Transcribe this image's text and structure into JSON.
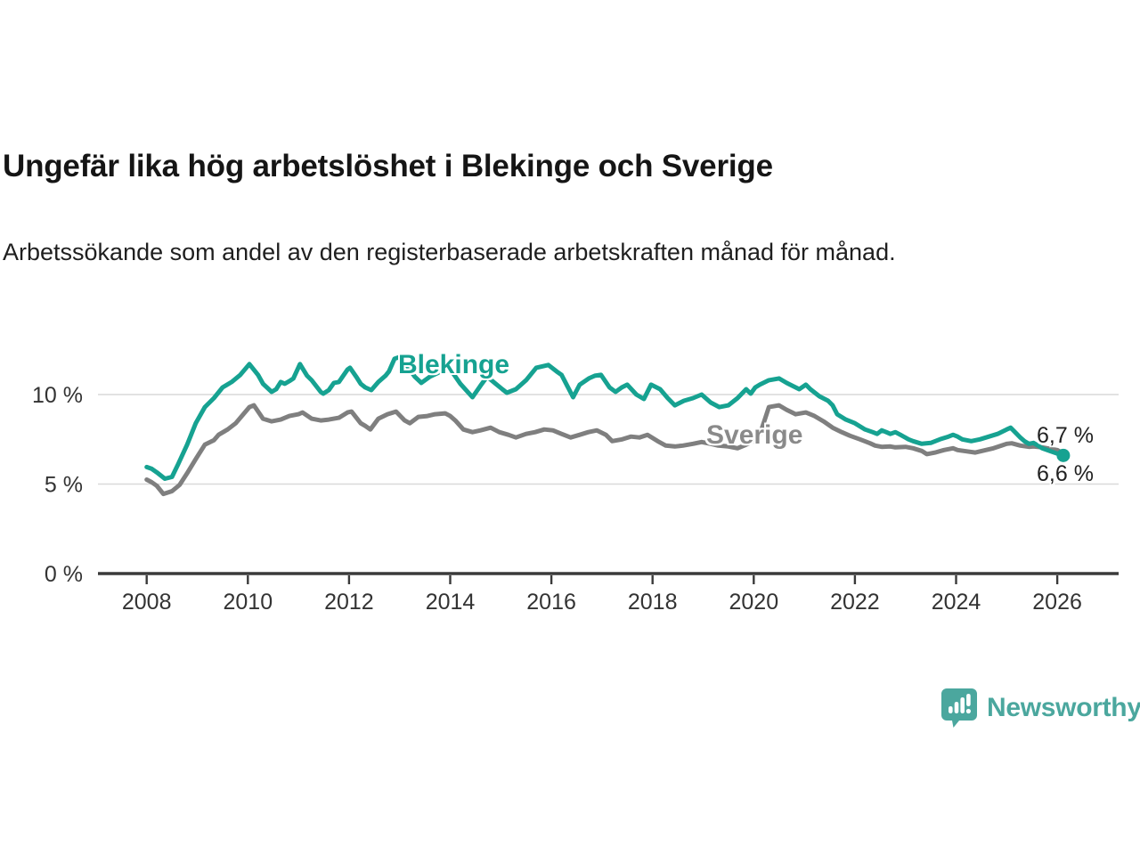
{
  "header": {
    "title": "Ungefär lika hög arbetslöshet i Blekinge och Sverige",
    "subtitle": "Arbetssökande som andel av den registerbaserade arbetskraften månad för månad."
  },
  "chart_data": {
    "type": "line",
    "title": "Ungefär lika hög arbetslöshet i Blekinge och Sverige",
    "subtitle": "Arbetssökande som andel av den registerbaserade arbetskraften månad för månad.",
    "unit": "%",
    "grid": "horizontal",
    "legend_position": "inline-labels",
    "x_axis": {
      "ticks": [
        2008,
        2010,
        2012,
        2014,
        2016,
        2018,
        2020,
        2022,
        2024,
        2026
      ],
      "range": [
        2007.0,
        2027.2
      ]
    },
    "y_axis": {
      "ticks": [
        {
          "value": 0,
          "label": "0 %"
        },
        {
          "value": 5,
          "label": "5 %"
        },
        {
          "value": 10,
          "label": "10 %"
        }
      ],
      "range": [
        0,
        12.8
      ]
    },
    "series": [
      {
        "name": "Blekinge",
        "color": "#16A291",
        "end_label": "6,6 %",
        "end_value": 6.6,
        "end_dot": true,
        "points": [
          [
            2008.0,
            5.95
          ],
          [
            2008.1,
            5.85
          ],
          [
            2008.2,
            5.65
          ],
          [
            2008.36,
            5.3
          ],
          [
            2008.5,
            5.4
          ],
          [
            2008.62,
            6.1
          ],
          [
            2008.8,
            7.2
          ],
          [
            2008.97,
            8.4
          ],
          [
            2009.15,
            9.3
          ],
          [
            2009.33,
            9.8
          ],
          [
            2009.5,
            10.4
          ],
          [
            2009.68,
            10.7
          ],
          [
            2009.85,
            11.1
          ],
          [
            2010.03,
            11.7
          ],
          [
            2010.2,
            11.1
          ],
          [
            2010.3,
            10.6
          ],
          [
            2010.47,
            10.15
          ],
          [
            2010.56,
            10.3
          ],
          [
            2010.65,
            10.7
          ],
          [
            2010.73,
            10.6
          ],
          [
            2010.82,
            10.75
          ],
          [
            2010.9,
            10.9
          ],
          [
            2011.03,
            11.7
          ],
          [
            2011.17,
            11.05
          ],
          [
            2011.26,
            10.8
          ],
          [
            2011.44,
            10.15
          ],
          [
            2011.49,
            10.05
          ],
          [
            2011.6,
            10.25
          ],
          [
            2011.7,
            10.65
          ],
          [
            2011.8,
            10.7
          ],
          [
            2011.97,
            11.4
          ],
          [
            2012.02,
            11.5
          ],
          [
            2012.14,
            11.0
          ],
          [
            2012.23,
            10.6
          ],
          [
            2012.32,
            10.4
          ],
          [
            2012.44,
            10.25
          ],
          [
            2012.58,
            10.7
          ],
          [
            2012.72,
            11.05
          ],
          [
            2012.79,
            11.3
          ],
          [
            2012.9,
            12.0
          ],
          [
            2013.0,
            12.1
          ],
          [
            2013.15,
            11.6
          ],
          [
            2013.3,
            11.0
          ],
          [
            2013.43,
            10.65
          ],
          [
            2013.6,
            11.0
          ],
          [
            2013.75,
            11.2
          ],
          [
            2013.9,
            11.4
          ],
          [
            2014.03,
            11.3
          ],
          [
            2014.2,
            10.6
          ],
          [
            2014.44,
            9.85
          ],
          [
            2014.6,
            10.5
          ],
          [
            2014.73,
            11.0
          ],
          [
            2014.9,
            10.6
          ],
          [
            2015.03,
            10.3
          ],
          [
            2015.12,
            10.1
          ],
          [
            2015.3,
            10.3
          ],
          [
            2015.5,
            10.8
          ],
          [
            2015.7,
            11.5
          ],
          [
            2015.94,
            11.65
          ],
          [
            2016.1,
            11.3
          ],
          [
            2016.2,
            11.1
          ],
          [
            2016.43,
            9.85
          ],
          [
            2016.56,
            10.55
          ],
          [
            2016.74,
            10.9
          ],
          [
            2016.86,
            11.05
          ],
          [
            2016.98,
            11.1
          ],
          [
            2017.15,
            10.4
          ],
          [
            2017.27,
            10.15
          ],
          [
            2017.39,
            10.4
          ],
          [
            2017.5,
            10.55
          ],
          [
            2017.68,
            10.0
          ],
          [
            2017.83,
            9.75
          ],
          [
            2017.97,
            10.55
          ],
          [
            2018.15,
            10.3
          ],
          [
            2018.3,
            9.8
          ],
          [
            2018.44,
            9.4
          ],
          [
            2018.62,
            9.65
          ],
          [
            2018.8,
            9.8
          ],
          [
            2018.97,
            10.0
          ],
          [
            2019.15,
            9.55
          ],
          [
            2019.32,
            9.3
          ],
          [
            2019.5,
            9.4
          ],
          [
            2019.68,
            9.8
          ],
          [
            2019.85,
            10.3
          ],
          [
            2019.94,
            10.05
          ],
          [
            2020.03,
            10.4
          ],
          [
            2020.12,
            10.55
          ],
          [
            2020.3,
            10.8
          ],
          [
            2020.5,
            10.9
          ],
          [
            2020.65,
            10.65
          ],
          [
            2020.83,
            10.4
          ],
          [
            2020.9,
            10.3
          ],
          [
            2021.03,
            10.55
          ],
          [
            2021.12,
            10.3
          ],
          [
            2021.3,
            9.9
          ],
          [
            2021.47,
            9.65
          ],
          [
            2021.56,
            9.4
          ],
          [
            2021.65,
            8.9
          ],
          [
            2021.82,
            8.6
          ],
          [
            2022.0,
            8.4
          ],
          [
            2022.2,
            8.05
          ],
          [
            2022.35,
            7.9
          ],
          [
            2022.44,
            7.8
          ],
          [
            2022.53,
            8.0
          ],
          [
            2022.62,
            7.9
          ],
          [
            2022.7,
            7.8
          ],
          [
            2022.8,
            7.9
          ],
          [
            2022.9,
            7.75
          ],
          [
            2023.06,
            7.5
          ],
          [
            2023.15,
            7.4
          ],
          [
            2023.32,
            7.25
          ],
          [
            2023.5,
            7.3
          ],
          [
            2023.68,
            7.5
          ],
          [
            2023.85,
            7.65
          ],
          [
            2023.94,
            7.75
          ],
          [
            2024.03,
            7.65
          ],
          [
            2024.12,
            7.5
          ],
          [
            2024.3,
            7.4
          ],
          [
            2024.47,
            7.5
          ],
          [
            2024.65,
            7.65
          ],
          [
            2024.82,
            7.8
          ],
          [
            2025.0,
            8.05
          ],
          [
            2025.08,
            8.15
          ],
          [
            2025.27,
            7.6
          ],
          [
            2025.35,
            7.4
          ],
          [
            2025.44,
            7.25
          ],
          [
            2025.53,
            7.3
          ],
          [
            2025.62,
            7.15
          ],
          [
            2025.7,
            7.0
          ],
          [
            2025.8,
            6.9
          ],
          [
            2025.9,
            6.8
          ],
          [
            2026.0,
            6.7
          ],
          [
            2026.12,
            6.6
          ]
        ]
      },
      {
        "name": "Sverige",
        "color": "#7F7F7F",
        "end_label": "6,7 %",
        "end_value": 6.7,
        "end_dot": false,
        "points": [
          [
            2008.0,
            5.25
          ],
          [
            2008.1,
            5.1
          ],
          [
            2008.2,
            4.9
          ],
          [
            2008.33,
            4.45
          ],
          [
            2008.5,
            4.6
          ],
          [
            2008.65,
            4.95
          ],
          [
            2008.8,
            5.6
          ],
          [
            2008.97,
            6.4
          ],
          [
            2009.15,
            7.2
          ],
          [
            2009.33,
            7.45
          ],
          [
            2009.42,
            7.75
          ],
          [
            2009.6,
            8.05
          ],
          [
            2009.76,
            8.4
          ],
          [
            2009.94,
            9.0
          ],
          [
            2010.03,
            9.3
          ],
          [
            2010.12,
            9.4
          ],
          [
            2010.3,
            8.65
          ],
          [
            2010.47,
            8.5
          ],
          [
            2010.65,
            8.6
          ],
          [
            2010.82,
            8.8
          ],
          [
            2011.0,
            8.9
          ],
          [
            2011.08,
            9.0
          ],
          [
            2011.26,
            8.65
          ],
          [
            2011.44,
            8.55
          ],
          [
            2011.6,
            8.6
          ],
          [
            2011.8,
            8.7
          ],
          [
            2011.97,
            9.0
          ],
          [
            2012.05,
            9.05
          ],
          [
            2012.23,
            8.4
          ],
          [
            2012.32,
            8.25
          ],
          [
            2012.42,
            8.05
          ],
          [
            2012.58,
            8.65
          ],
          [
            2012.76,
            8.9
          ],
          [
            2012.93,
            9.05
          ],
          [
            2013.1,
            8.55
          ],
          [
            2013.2,
            8.4
          ],
          [
            2013.37,
            8.75
          ],
          [
            2013.55,
            8.8
          ],
          [
            2013.7,
            8.9
          ],
          [
            2013.9,
            8.95
          ],
          [
            2014.0,
            8.8
          ],
          [
            2014.1,
            8.55
          ],
          [
            2014.26,
            8.05
          ],
          [
            2014.44,
            7.9
          ],
          [
            2014.6,
            8.0
          ],
          [
            2014.8,
            8.15
          ],
          [
            2014.97,
            7.9
          ],
          [
            2015.15,
            7.75
          ],
          [
            2015.3,
            7.6
          ],
          [
            2015.5,
            7.8
          ],
          [
            2015.68,
            7.9
          ],
          [
            2015.86,
            8.05
          ],
          [
            2016.03,
            8.0
          ],
          [
            2016.2,
            7.8
          ],
          [
            2016.38,
            7.6
          ],
          [
            2016.56,
            7.75
          ],
          [
            2016.73,
            7.9
          ],
          [
            2016.9,
            8.0
          ],
          [
            2017.08,
            7.75
          ],
          [
            2017.2,
            7.4
          ],
          [
            2017.4,
            7.5
          ],
          [
            2017.57,
            7.65
          ],
          [
            2017.74,
            7.6
          ],
          [
            2017.9,
            7.75
          ],
          [
            2018.1,
            7.4
          ],
          [
            2018.26,
            7.15
          ],
          [
            2018.44,
            7.1
          ],
          [
            2018.6,
            7.15
          ],
          [
            2018.8,
            7.25
          ],
          [
            2018.97,
            7.35
          ],
          [
            2019.15,
            7.25
          ],
          [
            2019.3,
            7.15
          ],
          [
            2019.5,
            7.1
          ],
          [
            2019.68,
            7.0
          ],
          [
            2019.85,
            7.2
          ],
          [
            2020.0,
            7.4
          ],
          [
            2020.12,
            7.75
          ],
          [
            2020.3,
            9.3
          ],
          [
            2020.5,
            9.4
          ],
          [
            2020.65,
            9.15
          ],
          [
            2020.83,
            8.9
          ],
          [
            2021.03,
            9.0
          ],
          [
            2021.2,
            8.8
          ],
          [
            2021.38,
            8.5
          ],
          [
            2021.56,
            8.15
          ],
          [
            2021.74,
            7.9
          ],
          [
            2021.9,
            7.7
          ],
          [
            2022.1,
            7.5
          ],
          [
            2022.3,
            7.28
          ],
          [
            2022.4,
            7.15
          ],
          [
            2022.53,
            7.08
          ],
          [
            2022.7,
            7.1
          ],
          [
            2022.8,
            7.05
          ],
          [
            2023.0,
            7.08
          ],
          [
            2023.15,
            7.0
          ],
          [
            2023.32,
            6.85
          ],
          [
            2023.42,
            6.67
          ],
          [
            2023.6,
            6.77
          ],
          [
            2023.76,
            6.9
          ],
          [
            2023.94,
            7.0
          ],
          [
            2024.03,
            6.9
          ],
          [
            2024.2,
            6.83
          ],
          [
            2024.38,
            6.76
          ],
          [
            2024.56,
            6.88
          ],
          [
            2024.74,
            7.0
          ],
          [
            2024.9,
            7.15
          ],
          [
            2025.0,
            7.25
          ],
          [
            2025.1,
            7.28
          ],
          [
            2025.27,
            7.15
          ],
          [
            2025.44,
            7.08
          ],
          [
            2025.53,
            7.1
          ],
          [
            2025.7,
            7.05
          ],
          [
            2025.8,
            7.0
          ],
          [
            2025.9,
            6.95
          ],
          [
            2026.0,
            6.9
          ],
          [
            2026.12,
            6.7
          ]
        ]
      }
    ]
  },
  "branding": {
    "name": "Newsworthy",
    "color": "#4BA79E",
    "icon": "newsworthy-barchart-speech-bubble"
  }
}
